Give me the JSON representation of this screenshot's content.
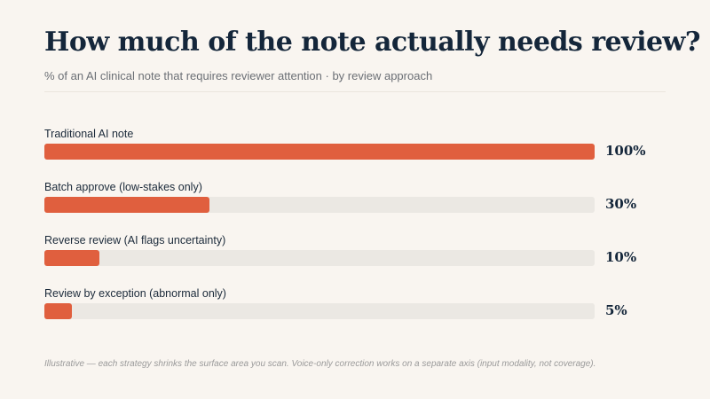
{
  "chart_data": {
    "type": "bar",
    "orientation": "horizontal",
    "title": "How much of the note actually needs review?",
    "subtitle": "% of an AI clinical note that requires reviewer attention · by review approach",
    "categories": [
      "Traditional AI note",
      "Batch approve (low-stakes only)",
      "Reverse review (AI flags uncertainty)",
      "Review by exception (abnormal only)"
    ],
    "values": [
      100,
      30,
      10,
      5
    ],
    "value_labels": [
      "100%",
      "30%",
      "10%",
      "5%"
    ],
    "xlim": [
      0,
      100
    ],
    "grid": false,
    "legend": "none",
    "footnote": "Illustrative — each strategy shrinks the surface area you scan. Voice-only correction works on a separate axis (input modality, not coverage).",
    "colors": {
      "bar": "#e05f3e",
      "track": "#ebe8e3",
      "background": "#f9f5f0",
      "title": "#14263a"
    }
  }
}
